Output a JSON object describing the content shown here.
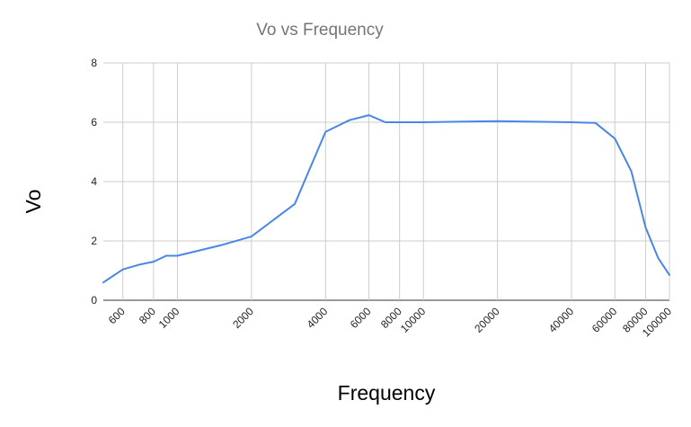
{
  "chart_data": {
    "type": "line",
    "title": "Vo vs Frequency",
    "xlabel": "Frequency",
    "ylabel": "Vo",
    "x_scale": "log",
    "xlim": [
      500,
      100000
    ],
    "ylim": [
      0,
      8
    ],
    "grid": true,
    "legend": "none",
    "x_ticks": [
      600,
      800,
      1000,
      2000,
      4000,
      6000,
      8000,
      10000,
      20000,
      40000,
      60000,
      80000,
      100000
    ],
    "x_tick_labels": [
      "600",
      "800",
      "1000",
      "2000",
      "4000",
      "6000",
      "8000",
      "10000",
      "20000",
      "40000",
      "60000",
      "80000",
      "100000"
    ],
    "y_ticks": [
      0,
      2,
      4,
      6,
      8
    ],
    "y_tick_labels": [
      "0",
      "2",
      "4",
      "6",
      "8"
    ],
    "series": [
      {
        "color": "#4a86e8",
        "x": [
          500,
          600,
          700,
          800,
          900,
          1000,
          1500,
          2000,
          3000,
          4000,
          5000,
          6000,
          7000,
          8000,
          10000,
          20000,
          40000,
          50000,
          60000,
          70000,
          80000,
          90000,
          100000
        ],
        "y": [
          0.6,
          1.04,
          1.2,
          1.3,
          1.5,
          1.5,
          1.85,
          2.15,
          3.25,
          5.68,
          6.07,
          6.24,
          6.0,
          6.0,
          6.0,
          6.04,
          6.0,
          5.98,
          5.45,
          4.35,
          2.45,
          1.42,
          0.85
        ]
      }
    ]
  }
}
